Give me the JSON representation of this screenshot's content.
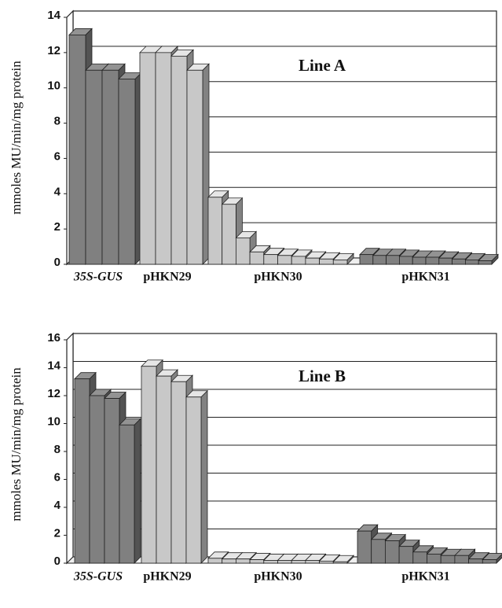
{
  "chart_data": [
    {
      "type": "bar",
      "annotation": "Line A",
      "y_label": "mmoles MU/min/mg protein",
      "ylim": [
        0,
        14
      ],
      "yticks": [
        0,
        2,
        4,
        6,
        8,
        10,
        12,
        14
      ],
      "grid": true,
      "series": [
        {
          "name": "35S-GUS",
          "color": "#808080",
          "values": [
            13,
            11,
            11,
            10.5
          ]
        },
        {
          "name": "pHKN29",
          "color": "#c8c8c8",
          "values": [
            12,
            12,
            11.8,
            11
          ]
        },
        {
          "name": "pHKN30",
          "color": "#c8c8c8",
          "values": [
            3.8,
            3.4,
            1.5,
            0.7,
            0.55,
            0.5,
            0.45,
            0.35,
            0.3,
            0.25
          ]
        },
        {
          "name": "pHKN31",
          "color": "#808080",
          "values": [
            0.55,
            0.5,
            0.5,
            0.45,
            0.4,
            0.4,
            0.35,
            0.3,
            0.25,
            0.2
          ]
        }
      ]
    },
    {
      "type": "bar",
      "annotation": "Line B",
      "y_label": "mmoles MU/min/mg protein",
      "ylim": [
        0,
        16
      ],
      "yticks": [
        0,
        2,
        4,
        6,
        8,
        10,
        12,
        14,
        16
      ],
      "grid": true,
      "series": [
        {
          "name": "35S-GUS",
          "color": "#808080",
          "values": [
            13.2,
            12,
            11.8,
            9.9
          ]
        },
        {
          "name": "pHKN29",
          "color": "#c8c8c8",
          "values": [
            14.1,
            13.4,
            13,
            11.9
          ]
        },
        {
          "name": "pHKN30",
          "color": "#c8c8c8",
          "values": [
            0.35,
            0.3,
            0.3,
            0.25,
            0.2,
            0.2,
            0.2,
            0.2,
            0.15,
            0.1
          ]
        },
        {
          "name": "pHKN31",
          "color": "#808080",
          "values": [
            2.3,
            1.7,
            1.6,
            1.2,
            0.8,
            0.65,
            0.55,
            0.55,
            0.3,
            0.25
          ]
        }
      ]
    }
  ]
}
